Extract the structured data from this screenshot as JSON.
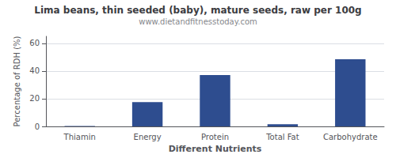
{
  "chart_data": {
    "type": "bar",
    "title": "Lima beans, thin seeded (baby), mature seeds, raw per 100g",
    "subtitle": "www.dietandfitnesstoday.com",
    "xlabel": "Different Nutrients",
    "ylabel": "Percentage of RDH (%)",
    "categories": [
      "Thiamin",
      "Energy",
      "Protein",
      "Total Fat",
      "Carbohydrate"
    ],
    "values": [
      0.3,
      17.5,
      37.0,
      1.5,
      48.5
    ],
    "color": "#2e4d8f",
    "ylim": [
      0,
      65
    ],
    "yticks": [
      0,
      20,
      40,
      60
    ],
    "grid": true
  }
}
